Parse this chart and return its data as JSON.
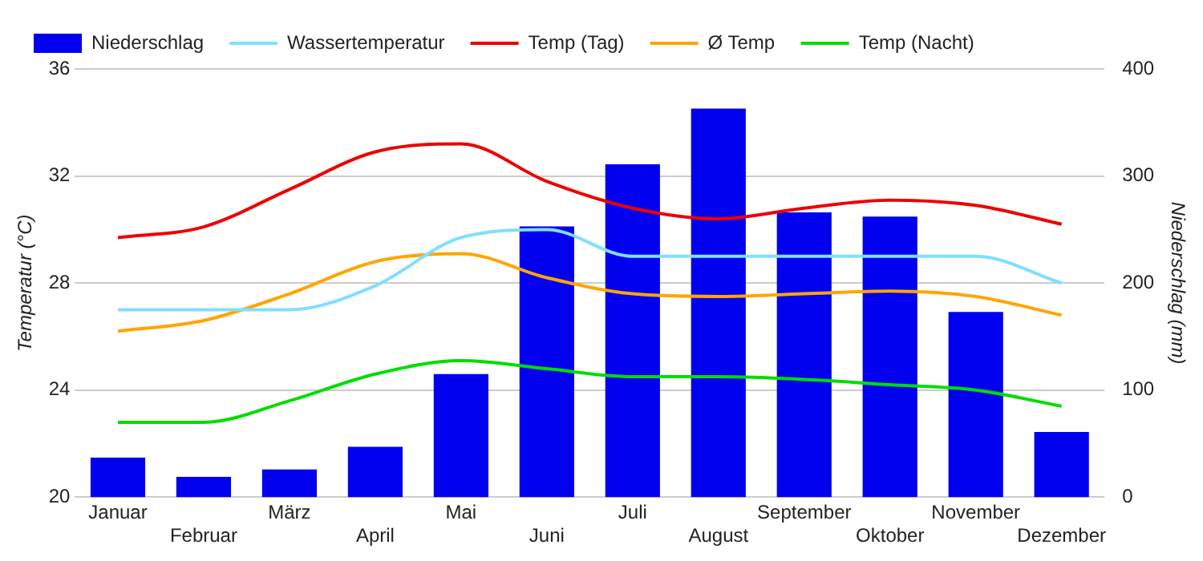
{
  "chart_data": {
    "type": "bar",
    "categories": [
      "Januar",
      "Februar",
      "März",
      "April",
      "Mai",
      "Juni",
      "Juli",
      "August",
      "September",
      "Oktober",
      "November",
      "Dezember"
    ],
    "ylabel": "Temperatur (°C)",
    "y2label": "Niederschlag (mm)",
    "ylim": [
      20,
      36
    ],
    "yticks": [
      20,
      24,
      28,
      32,
      36
    ],
    "y2lim": [
      0,
      400
    ],
    "y2ticks": [
      0,
      100,
      200,
      300,
      400
    ],
    "grid": "y",
    "legend": "top",
    "marker": "none",
    "line_style": "solid",
    "series": [
      {
        "name": "Niederschlag",
        "axis": "y2",
        "color": "#0000ee",
        "values": [
          37,
          19,
          26,
          47,
          115,
          253,
          311,
          363,
          266,
          262,
          173,
          61
        ]
      },
      {
        "name": "Wassertemperatur",
        "type": "line",
        "color": "#80dfff",
        "values": [
          27,
          27,
          27,
          27.9,
          29.7,
          30.0,
          29.0,
          29.0,
          29.0,
          29.0,
          29.0,
          28.0
        ]
      },
      {
        "name": "Temp (Tag)",
        "type": "line",
        "color": "#ee0000",
        "values": [
          29.7,
          30.1,
          31.5,
          32.9,
          33.2,
          31.8,
          30.8,
          30.4,
          30.8,
          31.1,
          30.9,
          30.2
        ]
      },
      {
        "name": "Ø Temp",
        "type": "line",
        "color": "#ffa500",
        "values": [
          26.2,
          26.6,
          27.6,
          28.8,
          29.1,
          28.2,
          27.6,
          27.5,
          27.6,
          27.7,
          27.5,
          26.8
        ]
      },
      {
        "name": "Temp (Nacht)",
        "type": "line",
        "color": "#00dd00",
        "values": [
          22.8,
          22.8,
          23.6,
          24.6,
          25.1,
          24.8,
          24.5,
          24.5,
          24.4,
          24.2,
          24.0,
          23.4
        ]
      }
    ]
  }
}
